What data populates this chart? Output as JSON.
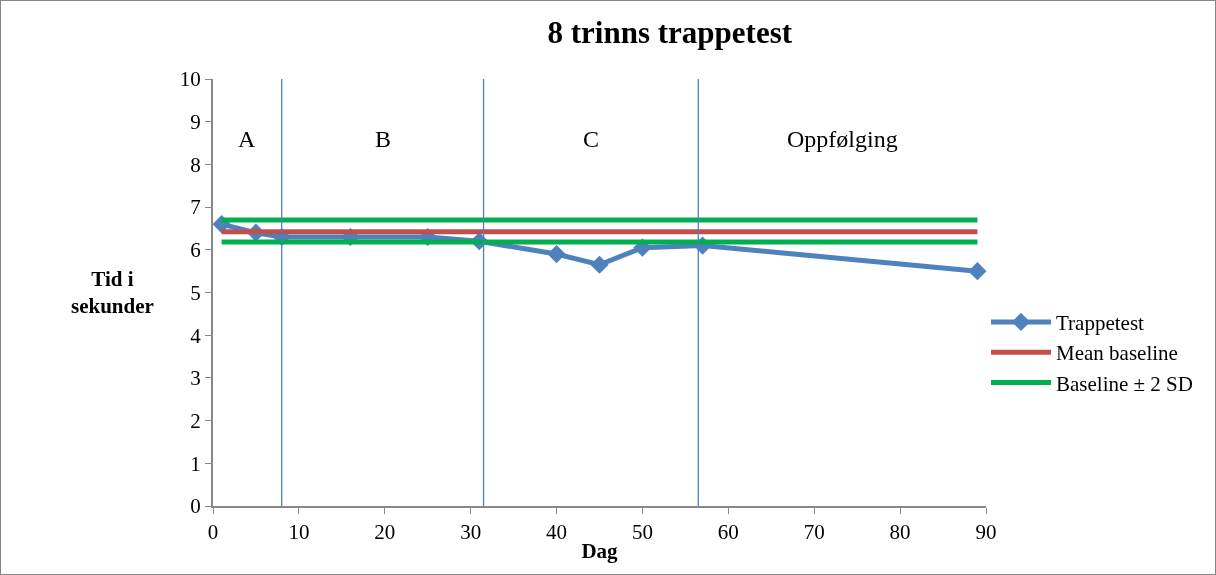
{
  "chart_data": {
    "type": "line",
    "title": "8 trinns trappetest",
    "xlabel": "Dag",
    "ylabel": "Tid i sekunder",
    "series": [
      {
        "name": "Trappetest",
        "color": "#4f81bd",
        "marker": "diamond",
        "x": [
          1,
          5,
          8,
          16,
          25,
          31,
          40,
          45,
          50,
          57,
          89
        ],
        "values": [
          6.6,
          6.4,
          6.3,
          6.3,
          6.3,
          6.2,
          5.9,
          5.65,
          6.05,
          6.1,
          5.5
        ]
      },
      {
        "name": "Mean baseline",
        "color": "#c0504d",
        "marker": "none",
        "x": [
          1,
          89
        ],
        "values": [
          6.42,
          6.42
        ]
      },
      {
        "name": "Baseline ± 2 SD",
        "color": "#00b050",
        "marker": "none",
        "x": [
          1,
          89
        ],
        "values": [
          6.7,
          6.7
        ]
      },
      {
        "color": "#00b050",
        "marker": "none",
        "x": [
          1,
          89
        ],
        "values": [
          6.18,
          6.18
        ]
      }
    ],
    "ref_lines": [
      {
        "axis": "x",
        "value": 8,
        "color": "#4f81bd"
      },
      {
        "axis": "x",
        "value": 31.5,
        "color": "#4f81bd"
      },
      {
        "axis": "x",
        "value": 56.5,
        "color": "#4f81bd"
      }
    ],
    "annotations": [
      "A",
      "B",
      "C",
      "Oppfølging"
    ],
    "xlim": [
      0,
      90
    ],
    "xticks": [
      0,
      10,
      20,
      30,
      40,
      50,
      60,
      70,
      80,
      90
    ],
    "ylim": [
      0,
      10
    ],
    "yticks": [
      0,
      1,
      2,
      3,
      4,
      5,
      6,
      7,
      8,
      9,
      10
    ],
    "grid": false,
    "legend": "right"
  }
}
